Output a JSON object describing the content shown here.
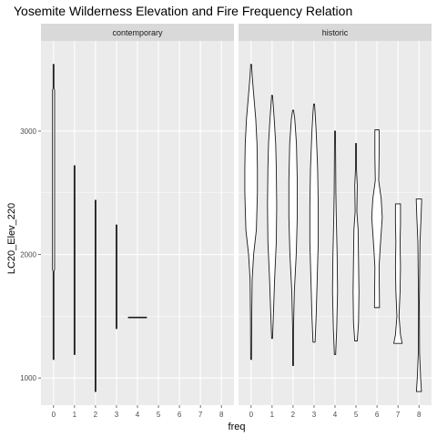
{
  "chart_data": {
    "type": "violin",
    "title": "Yosemite Wilderness Elevation and Fire Frequency Relation",
    "xlabel": "freq",
    "ylabel": "LC20_Elev_220",
    "x_categories": [
      "0",
      "1",
      "2",
      "3",
      "4",
      "5",
      "6",
      "7",
      "8"
    ],
    "ylim": [
      780,
      3730
    ],
    "y_ticks": [
      1000,
      2000,
      3000
    ],
    "grid": true,
    "colors": {
      "panel": "#ebebeb",
      "strip": "#d9d9d9",
      "grid": "#ffffff",
      "outline": "#1a1a1a",
      "axis_text": "#4d4d4d"
    },
    "panels": [
      {
        "label": "contemporary",
        "violins": [
          {
            "freq": 0,
            "profile": [
              [
                1150,
                0.02
              ],
              [
                1860,
                0.02
              ],
              [
                1880,
                0.05
              ],
              [
                3330,
                0.05
              ],
              [
                3350,
                0.02
              ],
              [
                3540,
                0.02
              ]
            ]
          },
          {
            "freq": 1,
            "profile": [
              [
                1190,
                0.02
              ],
              [
                2720,
                0.02
              ]
            ]
          },
          {
            "freq": 2,
            "profile": [
              [
                890,
                0.02
              ],
              [
                2440,
                0.02
              ]
            ]
          },
          {
            "freq": 3,
            "profile": [
              [
                1400,
                0.02
              ],
              [
                2240,
                0.02
              ]
            ]
          },
          {
            "freq": 4,
            "flat": true,
            "value": 1490,
            "halfwidth": 0.45
          }
        ]
      },
      {
        "label": "historic",
        "violins": [
          {
            "freq": 0,
            "profile": [
              [
                1150,
                0.02
              ],
              [
                1500,
                0.03
              ],
              [
                1800,
                0.05
              ],
              [
                2000,
                0.12
              ],
              [
                2200,
                0.25
              ],
              [
                2500,
                0.3
              ],
              [
                2700,
                0.3
              ],
              [
                2900,
                0.28
              ],
              [
                3100,
                0.22
              ],
              [
                3300,
                0.12
              ],
              [
                3450,
                0.05
              ],
              [
                3540,
                0.02
              ]
            ]
          },
          {
            "freq": 1,
            "profile": [
              [
                1320,
                0.02
              ],
              [
                1500,
                0.06
              ],
              [
                1800,
                0.12
              ],
              [
                2100,
                0.2
              ],
              [
                2400,
                0.22
              ],
              [
                2700,
                0.2
              ],
              [
                2900,
                0.17
              ],
              [
                3100,
                0.1
              ],
              [
                3290,
                0.02
              ]
            ]
          },
          {
            "freq": 2,
            "profile": [
              [
                1100,
                0.02
              ],
              [
                1400,
                0.02
              ],
              [
                1700,
                0.06
              ],
              [
                2000,
                0.15
              ],
              [
                2300,
                0.2
              ],
              [
                2600,
                0.2
              ],
              [
                2900,
                0.16
              ],
              [
                3100,
                0.08
              ],
              [
                3170,
                0.02
              ]
            ]
          },
          {
            "freq": 3,
            "profile": [
              [
                1290,
                0.05
              ],
              [
                1500,
                0.1
              ],
              [
                1800,
                0.15
              ],
              [
                2100,
                0.2
              ],
              [
                2400,
                0.2
              ],
              [
                2700,
                0.17
              ],
              [
                3000,
                0.1
              ],
              [
                3150,
                0.05
              ],
              [
                3220,
                0.02
              ]
            ]
          },
          {
            "freq": 4,
            "profile": [
              [
                1190,
                0.03
              ],
              [
                1400,
                0.08
              ],
              [
                1700,
                0.12
              ],
              [
                2000,
                0.1
              ],
              [
                2300,
                0.06
              ],
              [
                2500,
                0.04
              ],
              [
                2750,
                0.03
              ],
              [
                3000,
                0.02
              ]
            ]
          },
          {
            "freq": 5,
            "profile": [
              [
                1300,
                0.06
              ],
              [
                1450,
                0.12
              ],
              [
                1700,
                0.14
              ],
              [
                1950,
                0.12
              ],
              [
                2200,
                0.1
              ],
              [
                2350,
                0.04
              ],
              [
                2560,
                0.06
              ],
              [
                2700,
                0.02
              ],
              [
                2900,
                0.02
              ]
            ]
          },
          {
            "freq": 6,
            "profile": [
              [
                1570,
                0.12
              ],
              [
                1900,
                0.1
              ],
              [
                2050,
                0.15
              ],
              [
                2300,
                0.25
              ],
              [
                2450,
                0.2
              ],
              [
                2600,
                0.08
              ],
              [
                2800,
                0.1
              ],
              [
                3010,
                0.1
              ]
            ]
          },
          {
            "freq": 7,
            "profile": [
              [
                1280,
                0.2
              ],
              [
                1350,
                0.12
              ],
              [
                1500,
                0.05
              ],
              [
                1700,
                0.1
              ],
              [
                1900,
                0.12
              ],
              [
                2100,
                0.1
              ],
              [
                2250,
                0.12
              ],
              [
                2410,
                0.12
              ]
            ]
          },
          {
            "freq": 8,
            "profile": [
              [
                890,
                0.12
              ],
              [
                1000,
                0.08
              ],
              [
                1200,
                0.03
              ],
              [
                1600,
                0.02
              ],
              [
                2100,
                0.05
              ],
              [
                2300,
                0.1
              ],
              [
                2450,
                0.13
              ]
            ]
          }
        ]
      }
    ]
  }
}
